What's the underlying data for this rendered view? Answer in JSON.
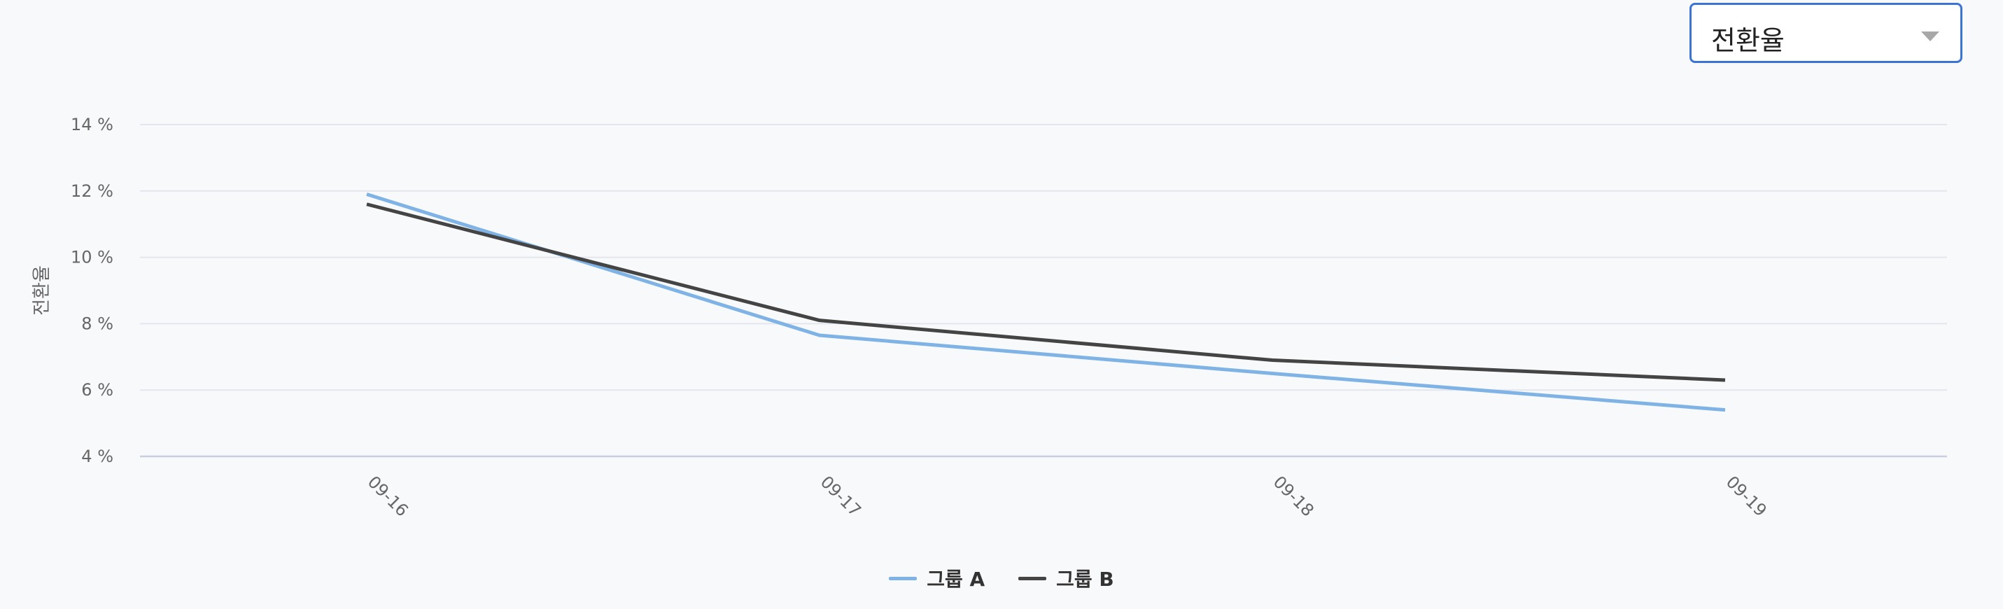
{
  "metric_selector": {
    "selected": "전환율",
    "icon": "chevron-down-icon"
  },
  "chart_data": {
    "type": "line",
    "title": "",
    "xlabel": "",
    "ylabel": "전환율",
    "categories": [
      "09-16",
      "09-17",
      "09-18",
      "09-19"
    ],
    "ylim": [
      4,
      14
    ],
    "yticks": [
      4,
      6,
      8,
      10,
      12,
      14
    ],
    "y_unit_suffix": " %",
    "grid": true,
    "legend_position": "bottom-center",
    "series": [
      {
        "name": "그룹 A",
        "color": "#7fb3e6",
        "values": [
          11.9,
          7.65,
          6.5,
          5.4
        ]
      },
      {
        "name": "그룹 B",
        "color": "#444444",
        "values": [
          11.6,
          8.1,
          6.9,
          6.3
        ]
      }
    ]
  }
}
